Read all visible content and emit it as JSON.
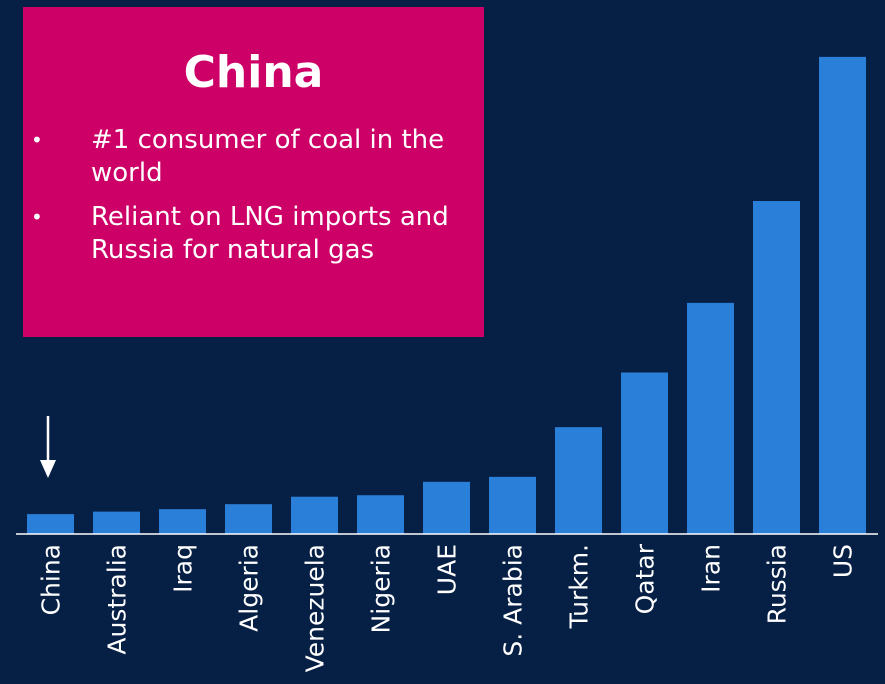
{
  "colors": {
    "background": "#061f45",
    "bar": "#2a7fd9",
    "callout": "#cc0066",
    "text": "#ffffff"
  },
  "callout": {
    "title": "China",
    "bullets": [
      "#1 consumer of coal in the world",
      "Reliant on LNG imports and Russia for natural gas"
    ]
  },
  "chart_data": {
    "type": "bar",
    "categories": [
      "China",
      "Australia",
      "Iraq",
      "Algeria",
      "Venezuela",
      "Nigeria",
      "UAE",
      "S. Arabia",
      "Turkm.",
      "Qatar",
      "Iran",
      "Russia",
      "US"
    ],
    "values": [
      4,
      4.5,
      5,
      6,
      7.5,
      7.8,
      10.5,
      11.5,
      21.5,
      32.5,
      46.5,
      67,
      96
    ],
    "title": "",
    "xlabel": "",
    "ylabel": "",
    "ylim": [
      0,
      100
    ],
    "grid": false,
    "highlight_category": "China",
    "highlight_icon": "down-arrow-icon"
  }
}
